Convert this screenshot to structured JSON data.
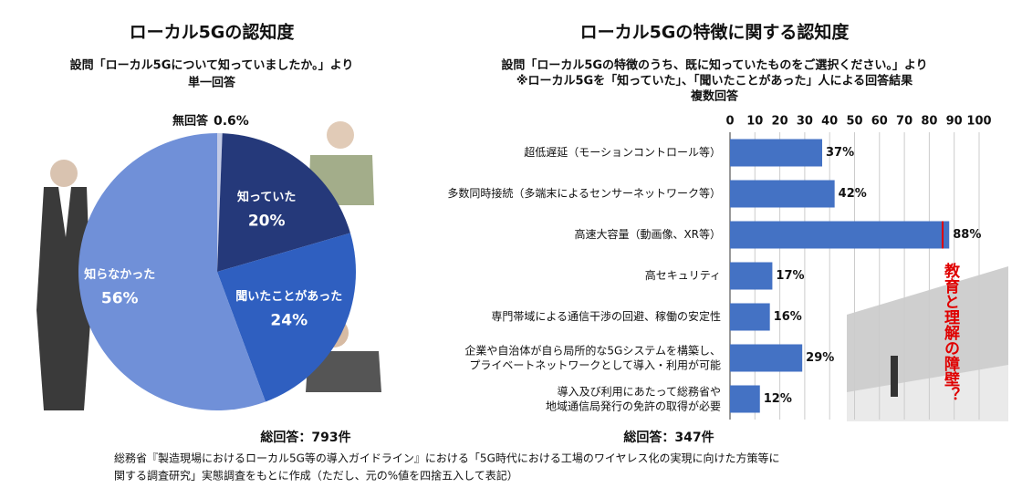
{
  "charts": [
    {
      "type": "pie",
      "title": "ローカル5Gの認知度",
      "subtitle": [
        "設問「ローカル5Gについて知っていましたか。」より",
        "単一回答"
      ],
      "categories": [
        "無回答",
        "知っていた",
        "聞いたことがあった",
        "知らなかった"
      ],
      "values": [
        0.6,
        20,
        24,
        56
      ],
      "value_labels": [
        "0.6%",
        "20%",
        "24%",
        "56%"
      ],
      "colors": [
        "#c3cbe6",
        "#25397a",
        "#2f5fc0",
        "#7090d8"
      ],
      "footer": "総回答：793件"
    },
    {
      "type": "hbar",
      "title": "ローカル5Gの特徴に関する認知度",
      "subtitle": [
        "設問「ローカル5Gの特徴のうち、既に知っていたものをご選択ください。」より",
        "※ローカル5Gを「知っていた」、「聞いたことがあった」人による回答結果",
        "複数回答"
      ],
      "categories": [
        "超低遅延（モーションコントロール等）",
        "多数同時接続（多端末によるセンサーネットワーク等）",
        "高速大容量（動画像、XR等）",
        "高セキュリティ",
        "専門帯域による通信干渉の回避、稼働の安定性",
        "企業や自治体が自ら局所的な5Gシステムを構築し、\nプライベートネットワークとして導入・利用が可能",
        "導入及び利用にあたって総務省や\n地域通信局発行の免許の取得が必要"
      ],
      "values": [
        37,
        42,
        88,
        17,
        16,
        29,
        12
      ],
      "value_labels": [
        "37%",
        "42%",
        "88%",
        "17%",
        "16%",
        "29%",
        "12%"
      ],
      "color": "#4472c4",
      "xlim": [
        0,
        100
      ],
      "xticks": [
        0,
        10,
        20,
        30,
        40,
        50,
        60,
        70,
        80,
        90,
        100
      ],
      "grid": true,
      "annotation": "教育と理解の障壁？",
      "footer": "総回答：347件"
    }
  ],
  "source": [
    "総務省『製造現場におけるローカル5G等の導入ガイドライン』における「5G時代における工場のワイヤレス化の実現に向けた方策等に",
    "関する調査研究」実態調査をもとに作成（ただし、元の%値を四捨五入して表記）"
  ]
}
